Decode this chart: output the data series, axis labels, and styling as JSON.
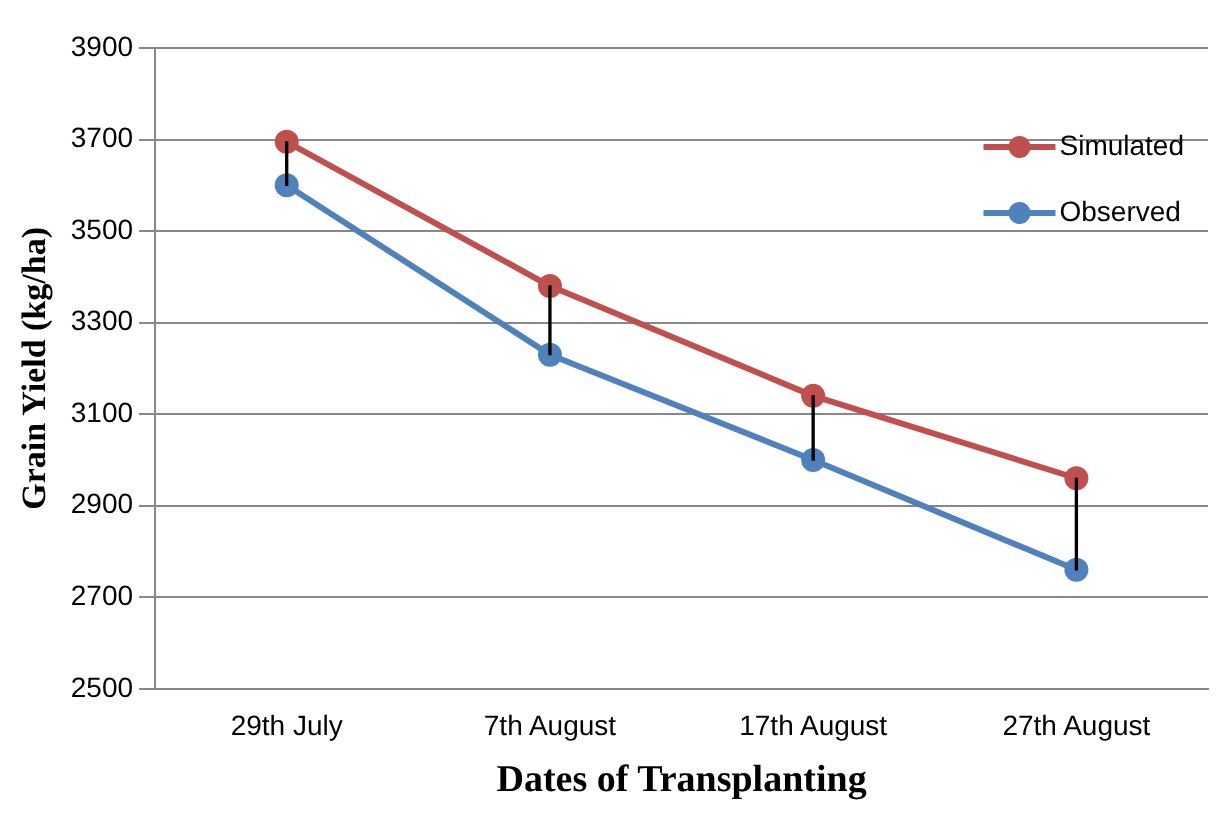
{
  "chart_data": {
    "type": "line",
    "xlabel": "Dates of Transplanting",
    "ylabel": "Grain Yield (kg/ha)",
    "categories": [
      "29th July",
      "7th August",
      "17th August",
      "27th August"
    ],
    "series": [
      {
        "name": "Simulated",
        "color": "#c0504d",
        "values": [
          3695,
          3380,
          3140,
          2960
        ]
      },
      {
        "name": "Observed",
        "color": "#4f81bd",
        "values": [
          3600,
          3230,
          3000,
          2760
        ]
      },
      {
        "type": "bar",
        "color": "#000000",
        "base": [
          3600,
          3230,
          3000,
          2760
        ],
        "values": [
          95,
          150,
          140,
          200
        ]
      }
    ],
    "ylim": [
      2500,
      3900
    ],
    "yticks": [
      2500,
      2700,
      2900,
      3100,
      3300,
      3500,
      3700,
      3900
    ],
    "grid": "y",
    "legend": "top right",
    "marker": "circle",
    "line_style": "solid"
  }
}
